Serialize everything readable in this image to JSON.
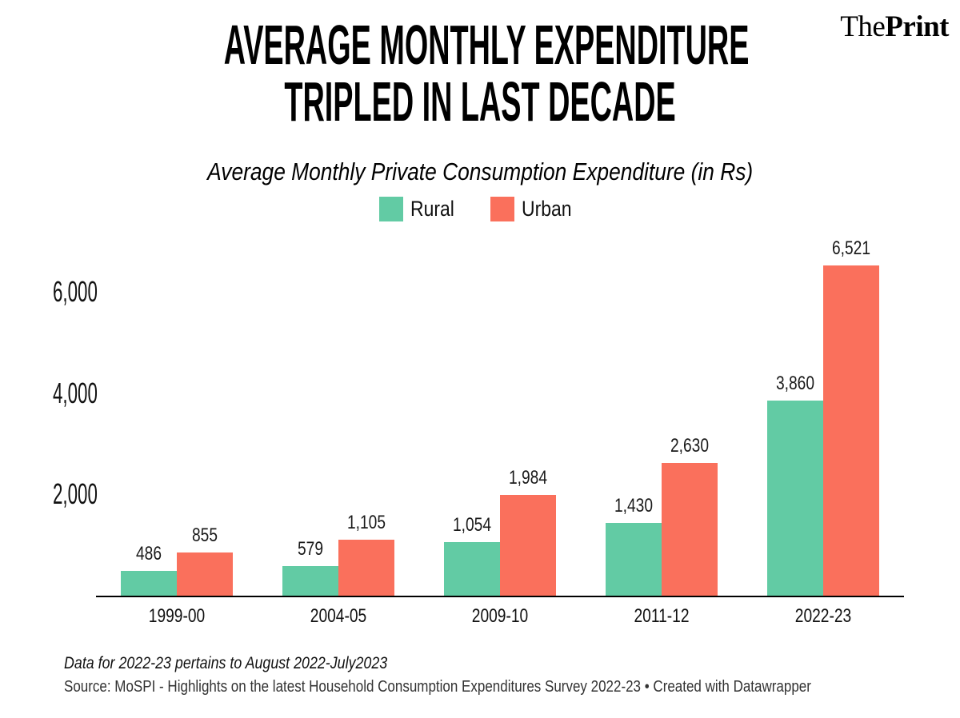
{
  "brand": {
    "prefix": "The",
    "suffix": "Print"
  },
  "header": {
    "title_line1": "AVERAGE MONTHLY EXPENDITURE",
    "title_line2": "TRIPLED IN LAST DECADE"
  },
  "footer": {
    "notes": "Data for 2022-23 pertains to August 2022-July2023",
    "source": "Source: MoSPI - Highlights on the latest Household Consumption Expenditures Survey 2022-23 • Created with Datawrapper"
  },
  "colors": {
    "rural": "#62cba4",
    "urban": "#fa705c",
    "axis": "#000000",
    "background": "#ffffff",
    "text": "#000000"
  },
  "chart_data": {
    "type": "bar",
    "title": "Average Monthly Private Consumption Expenditure (in Rs)",
    "xlabel": "",
    "ylabel": "",
    "categories": [
      "1999-00",
      "2004-05",
      "2009-10",
      "2011-12",
      "2022-23"
    ],
    "series": [
      {
        "name": "Rural",
        "color": "#62cba4",
        "values": [
          486,
          579,
          1054,
          1430,
          3860
        ],
        "labels": [
          "486",
          "579",
          "1,054",
          "1,430",
          "3,860"
        ]
      },
      {
        "name": "Urban",
        "color": "#fa705c",
        "values": [
          855,
          1105,
          1984,
          2630,
          6521
        ],
        "labels": [
          "855",
          "1,105",
          "1,984",
          "2,630",
          "6,521"
        ]
      }
    ],
    "ylim": [
      0,
      7030
    ],
    "yticks": [
      2000,
      4000,
      6000
    ],
    "ytick_labels": [
      "2,000",
      "4,000",
      "6,000"
    ],
    "grid": false,
    "legend_position": "top",
    "value_labels_shown": true
  }
}
